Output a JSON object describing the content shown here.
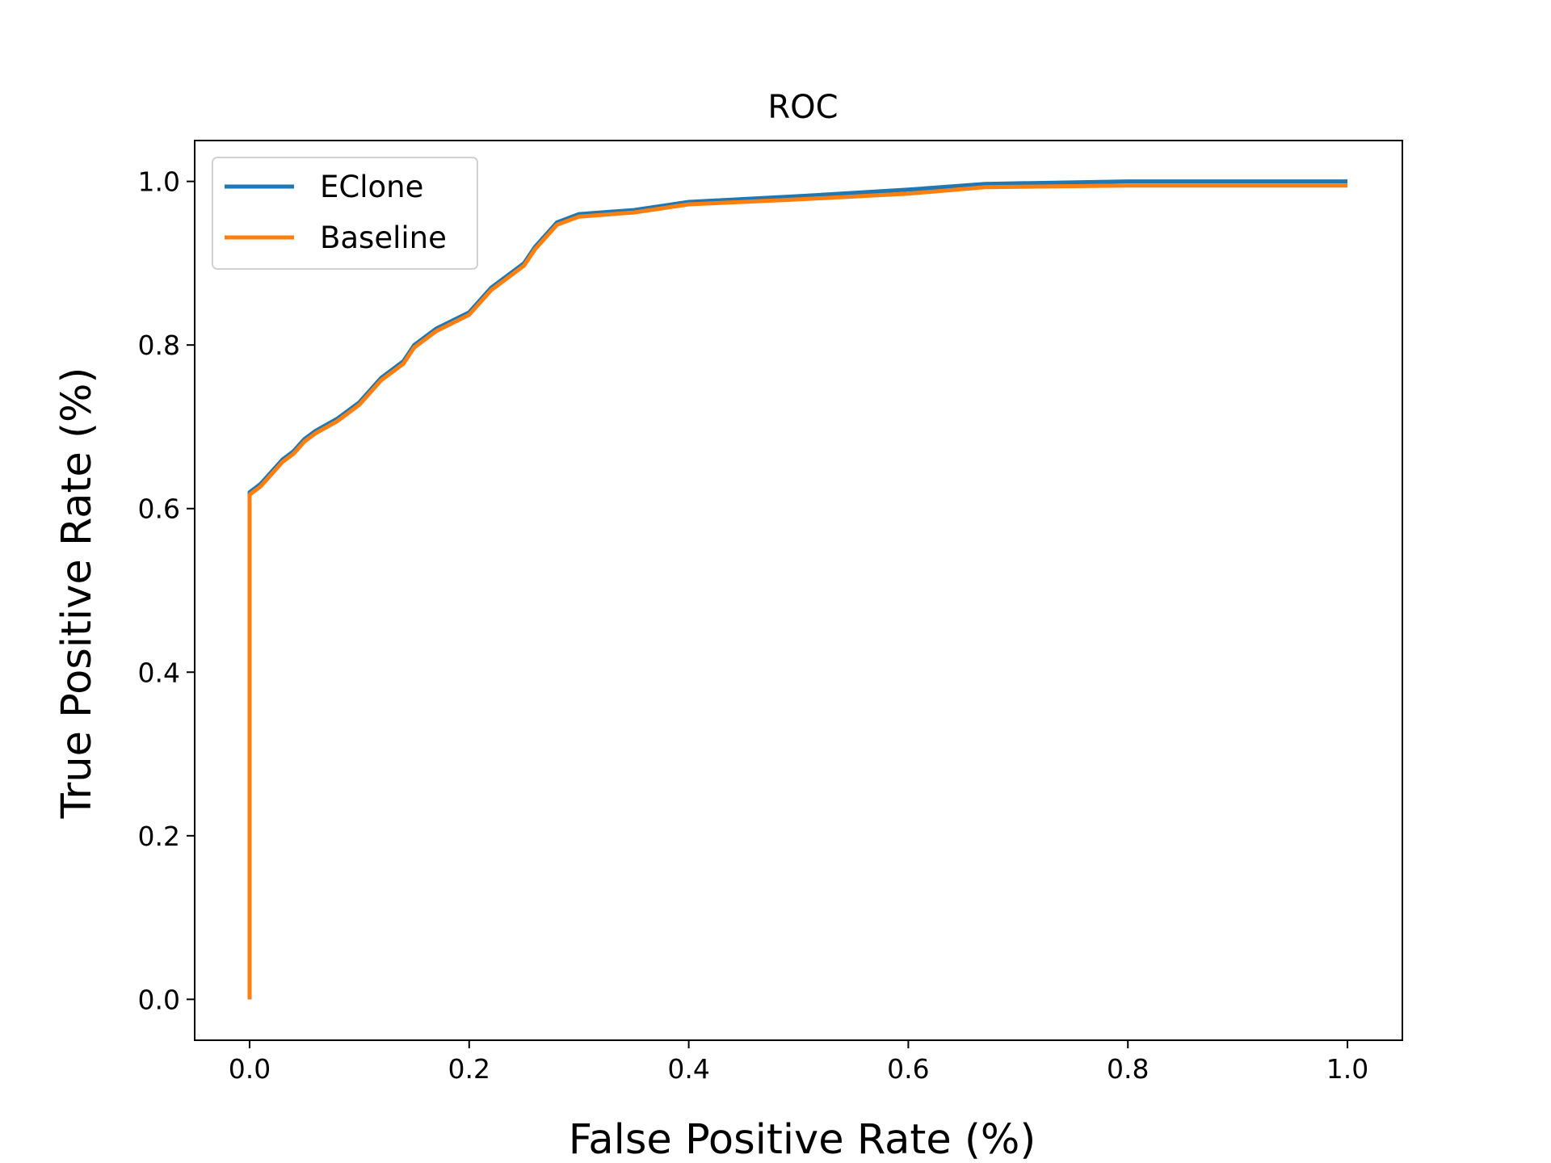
{
  "chart_data": {
    "type": "line",
    "title": "ROC",
    "xlabel": "False Positive Rate (%)",
    "ylabel": "True Positive Rate (%)",
    "xlim": [
      -0.05,
      1.05
    ],
    "ylim": [
      -0.05,
      1.05
    ],
    "xticks": [
      "0.0",
      "0.2",
      "0.4",
      "0.6",
      "0.8",
      "1.0"
    ],
    "yticks": [
      "0.0",
      "0.2",
      "0.4",
      "0.6",
      "0.8",
      "1.0"
    ],
    "grid": false,
    "legend_position": "top-left",
    "series": [
      {
        "name": "EClone",
        "color": "#1f77b4",
        "x": [
          0.0,
          0.0,
          0.01,
          0.02,
          0.03,
          0.04,
          0.05,
          0.06,
          0.08,
          0.1,
          0.12,
          0.14,
          0.15,
          0.17,
          0.2,
          0.22,
          0.25,
          0.26,
          0.28,
          0.3,
          0.35,
          0.4,
          0.5,
          0.6,
          0.67,
          0.8,
          1.0
        ],
        "y": [
          0.0,
          0.62,
          0.63,
          0.645,
          0.66,
          0.67,
          0.685,
          0.695,
          0.71,
          0.73,
          0.76,
          0.78,
          0.8,
          0.82,
          0.84,
          0.87,
          0.9,
          0.92,
          0.95,
          0.96,
          0.965,
          0.975,
          0.982,
          0.99,
          0.997,
          1.0,
          1.0
        ]
      },
      {
        "name": "Baseline",
        "color": "#ff7f0e",
        "x": [
          0.0,
          0.0,
          0.01,
          0.02,
          0.03,
          0.04,
          0.05,
          0.06,
          0.08,
          0.1,
          0.12,
          0.14,
          0.15,
          0.17,
          0.2,
          0.22,
          0.25,
          0.26,
          0.28,
          0.3,
          0.35,
          0.4,
          0.5,
          0.6,
          0.67,
          0.8,
          1.0
        ],
        "y": [
          0.0,
          0.617,
          0.627,
          0.642,
          0.657,
          0.667,
          0.682,
          0.692,
          0.707,
          0.727,
          0.757,
          0.777,
          0.797,
          0.817,
          0.837,
          0.867,
          0.897,
          0.917,
          0.947,
          0.957,
          0.962,
          0.972,
          0.978,
          0.985,
          0.993,
          0.995,
          0.995
        ]
      }
    ]
  }
}
